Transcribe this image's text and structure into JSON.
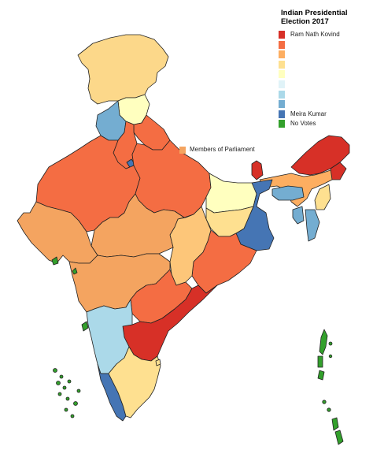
{
  "legend": {
    "title": "Indian Presidential Election 2017",
    "items": [
      {
        "label": "Ram Nath Kovind",
        "color": "#d73027"
      },
      {
        "label": "",
        "color": "#f46d43"
      },
      {
        "label": "",
        "color": "#fdae61"
      },
      {
        "label": "",
        "color": "#fee090"
      },
      {
        "label": "",
        "color": "#ffffbf"
      },
      {
        "label": "",
        "color": "#e0f3f8"
      },
      {
        "label": "",
        "color": "#abd9e9"
      },
      {
        "label": "",
        "color": "#74add1"
      },
      {
        "label": "Meira Kumar",
        "color": "#4575b4"
      },
      {
        "label": "No Votes",
        "color": "#33a02c"
      }
    ]
  },
  "mp_legend": {
    "label": "Members of Parliament",
    "color": "#f4a460"
  },
  "map": {
    "border_color": "#222222",
    "regions": [
      {
        "name": "Jammu and Kashmir",
        "color": "#fcd88a"
      },
      {
        "name": "Himachal Pradesh",
        "color": "#ffffbf"
      },
      {
        "name": "Punjab",
        "color": "#74add1"
      },
      {
        "name": "Chandigarh",
        "color": "#4575b4"
      },
      {
        "name": "Uttarakhand",
        "color": "#f46d43"
      },
      {
        "name": "Haryana",
        "color": "#f46d43"
      },
      {
        "name": "Delhi",
        "color": "#4575b4"
      },
      {
        "name": "Rajasthan",
        "color": "#f46d43"
      },
      {
        "name": "Uttar Pradesh",
        "color": "#f46d43"
      },
      {
        "name": "Bihar",
        "color": "#ffffbf"
      },
      {
        "name": "Sikkim",
        "color": "#d73027"
      },
      {
        "name": "Arunachal Pradesh",
        "color": "#d73027"
      },
      {
        "name": "Assam",
        "color": "#fdae61"
      },
      {
        "name": "Nagaland",
        "color": "#d73027"
      },
      {
        "name": "Manipur",
        "color": "#fee090"
      },
      {
        "name": "Meghalaya",
        "color": "#74add1"
      },
      {
        "name": "Tripura",
        "color": "#74add1"
      },
      {
        "name": "Mizoram",
        "color": "#74add1"
      },
      {
        "name": "West Bengal",
        "color": "#4575b4"
      },
      {
        "name": "Jharkhand",
        "color": "#fee090"
      },
      {
        "name": "Odisha",
        "color": "#f46d43"
      },
      {
        "name": "Chhattisgarh",
        "color": "#fdc679"
      },
      {
        "name": "Madhya Pradesh",
        "color": "#f4a460"
      },
      {
        "name": "Gujarat",
        "color": "#f4a460"
      },
      {
        "name": "Maharashtra",
        "color": "#f4a460"
      },
      {
        "name": "Telangana",
        "color": "#f46d43"
      },
      {
        "name": "Andhra Pradesh",
        "color": "#d73027"
      },
      {
        "name": "Karnataka",
        "color": "#abd9e9"
      },
      {
        "name": "Goa",
        "color": "#33a02c"
      },
      {
        "name": "Kerala",
        "color": "#4575b4"
      },
      {
        "name": "Tamil Nadu",
        "color": "#fee090"
      },
      {
        "name": "Puducherry",
        "color": "#fee090"
      },
      {
        "name": "Daman and Diu",
        "color": "#33a02c"
      },
      {
        "name": "Lakshadweep",
        "color": "#33a02c"
      },
      {
        "name": "Andaman and Nicobar Islands",
        "color": "#33a02c"
      }
    ]
  }
}
